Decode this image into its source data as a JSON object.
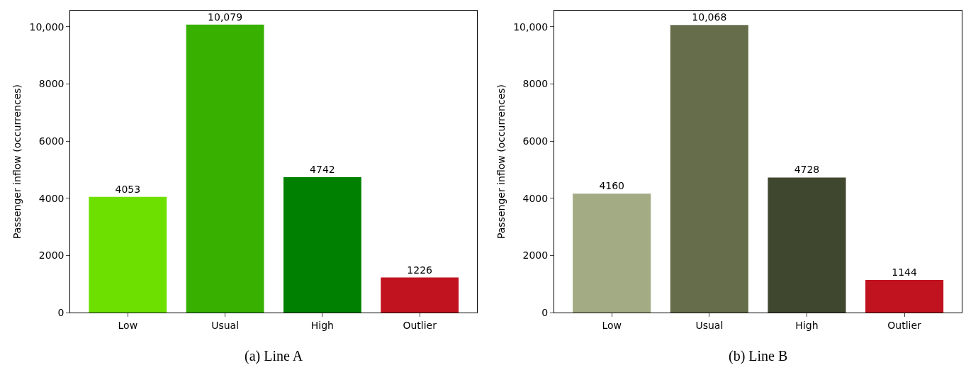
{
  "chart_data": [
    {
      "type": "bar",
      "title": "(a) Line A",
      "ylabel": "Passenger inflow (occurrences)",
      "categories": [
        "Low",
        "Usual",
        "High",
        "Outlier"
      ],
      "values": [
        4053,
        10079,
        4742,
        1226
      ],
      "colors": [
        "#6ee000",
        "#38b000",
        "#008000",
        "#c1121f"
      ],
      "value_labels": [
        "4053",
        "10,079",
        "4742",
        "1226"
      ],
      "ylim": [
        0,
        10570
      ],
      "yticks": [
        0,
        2000,
        4000,
        6000,
        8000,
        {
          "value": 10000,
          "label": "10,000"
        }
      ]
    },
    {
      "type": "bar",
      "title": "(b) Line B",
      "ylabel": "Passenger inflow (occurrences)",
      "categories": [
        "Low",
        "Usual",
        "High",
        "Outlier"
      ],
      "values": [
        4160,
        10068,
        4728,
        1144
      ],
      "colors": [
        "#a3ab84",
        "#666d4b",
        "#40472f",
        "#c1121f"
      ],
      "value_labels": [
        "4160",
        "10,068",
        "4728",
        "1144"
      ],
      "ylim": [
        0,
        10570
      ],
      "yticks": [
        0,
        2000,
        4000,
        6000,
        8000,
        {
          "value": 10000,
          "label": "10,000"
        }
      ]
    }
  ]
}
